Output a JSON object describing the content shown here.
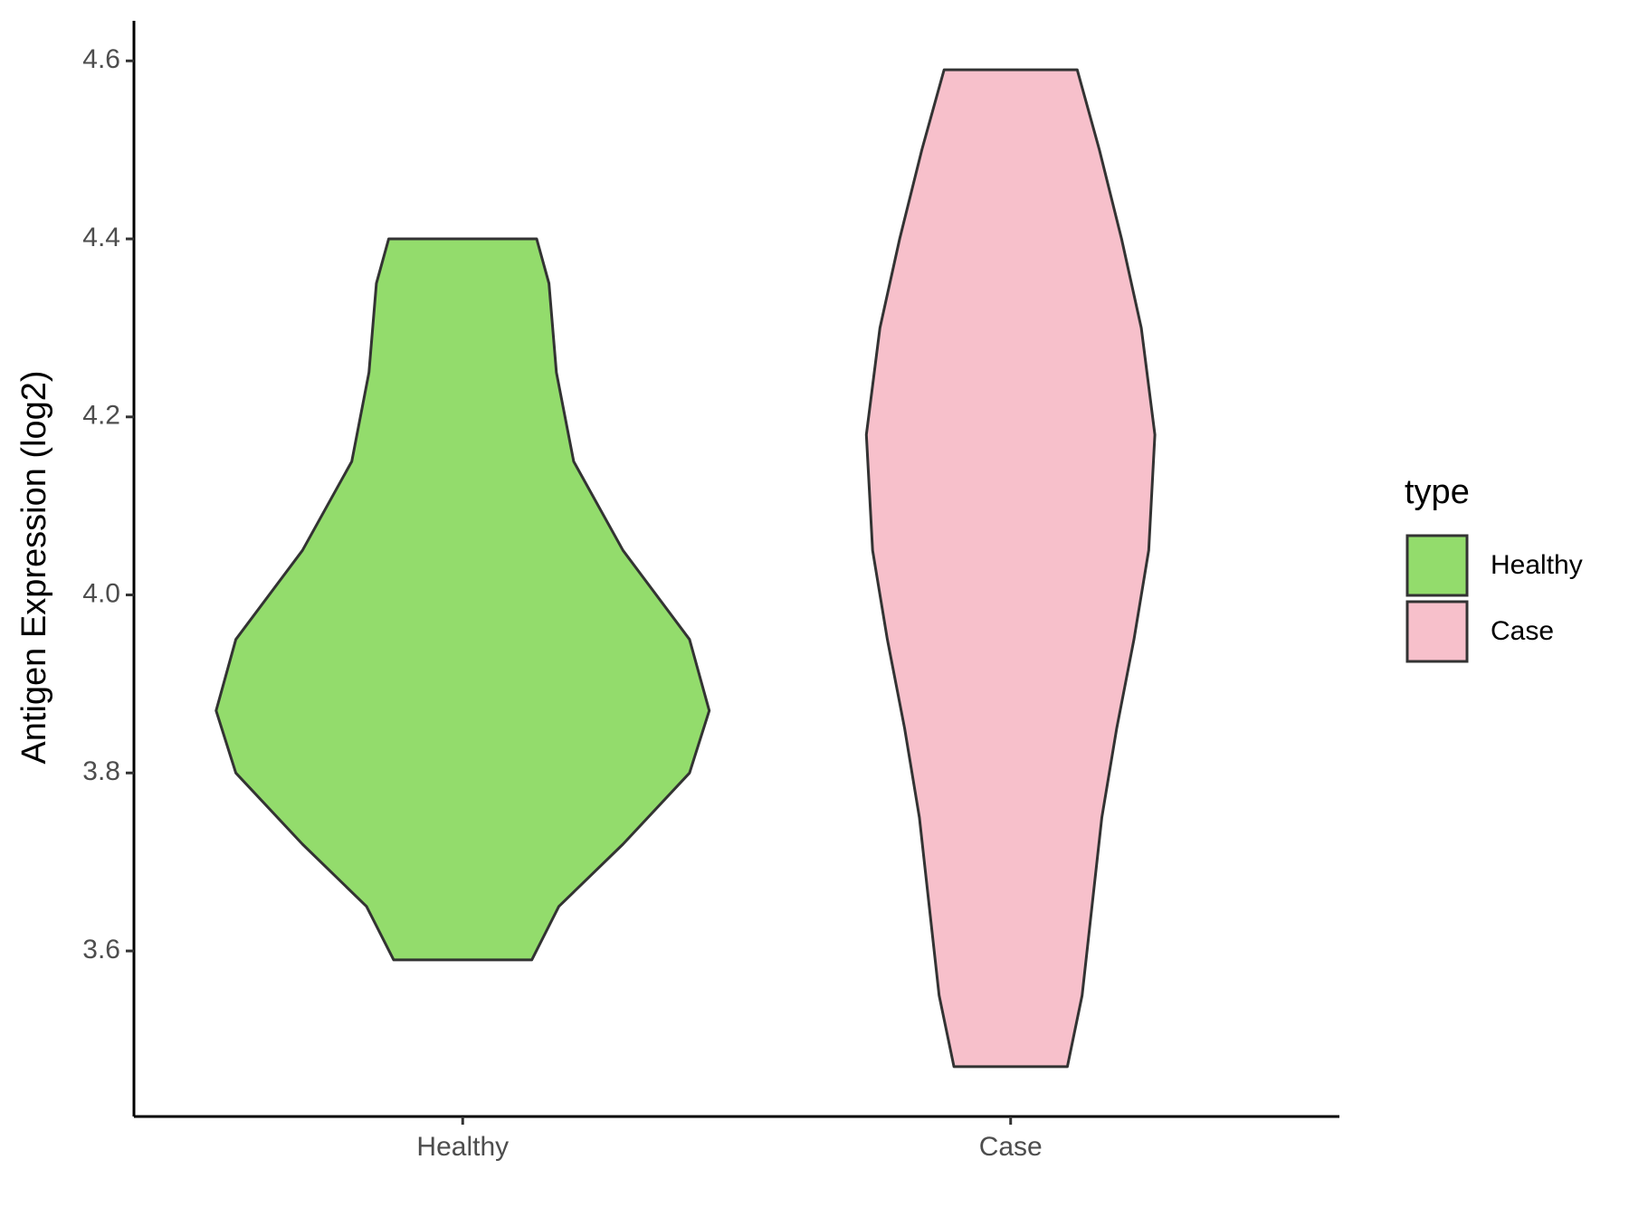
{
  "chart_data": {
    "type": "violin",
    "y_label": "Antigen Expression (log2)",
    "categories": [
      "Healthy",
      "Case"
    ],
    "legend_title": "type",
    "legend_position": "right",
    "ylim": [
      3.414,
      4.645
    ],
    "yticks": [
      {
        "value": 3.6,
        "label": "3.6"
      },
      {
        "value": 3.8,
        "label": "3.8"
      },
      {
        "value": 4.0,
        "label": "4.0"
      },
      {
        "value": 4.2,
        "label": "4.2"
      },
      {
        "value": 4.4,
        "label": "4.4"
      },
      {
        "value": 4.6,
        "label": "4.6"
      }
    ],
    "series": [
      {
        "name": "Healthy",
        "color": "#93dc6c",
        "y": [
          3.59,
          3.65,
          3.72,
          3.8,
          3.87,
          3.95,
          4.05,
          4.15,
          4.25,
          4.35,
          4.4
        ],
        "density": [
          0.28,
          0.39,
          0.65,
          0.92,
          1.0,
          0.92,
          0.65,
          0.45,
          0.38,
          0.35,
          0.3
        ]
      },
      {
        "name": "Case",
        "color": "#f7c0cb",
        "y": [
          3.47,
          3.55,
          3.65,
          3.75,
          3.85,
          3.95,
          4.05,
          4.18,
          4.3,
          4.4,
          4.5,
          4.59
        ],
        "density": [
          0.23,
          0.29,
          0.33,
          0.37,
          0.43,
          0.5,
          0.56,
          0.585,
          0.53,
          0.45,
          0.36,
          0.27
        ]
      }
    ]
  }
}
